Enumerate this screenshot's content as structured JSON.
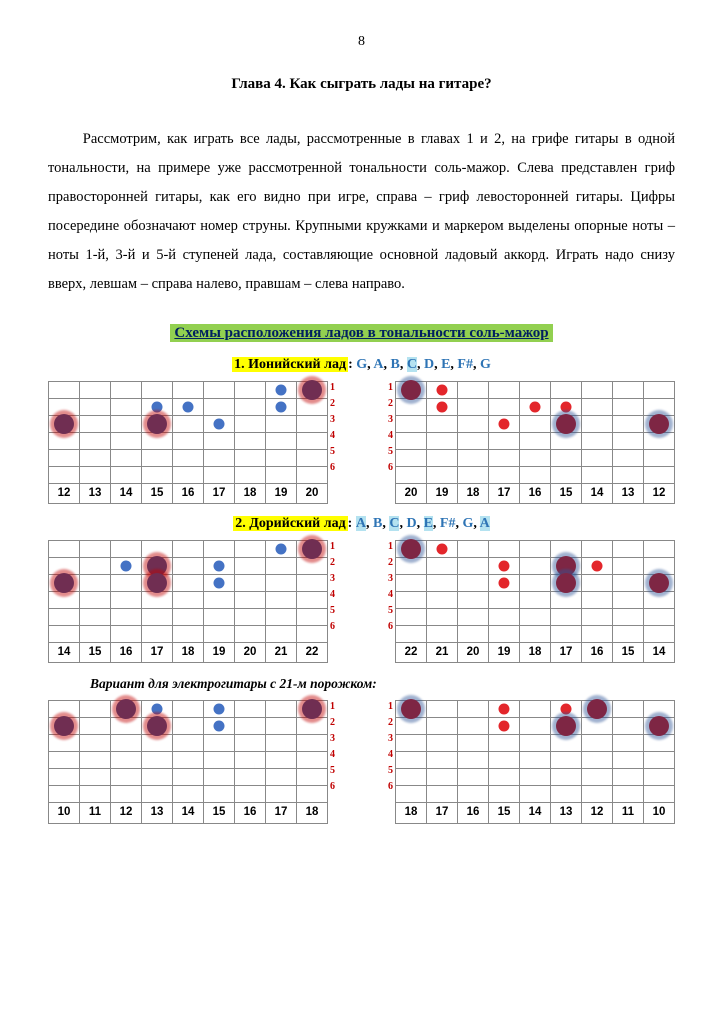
{
  "page_number": "8",
  "chapter_title": "Глава 4. Как сыграть лады на гитаре?",
  "paragraph": "Рассмотрим, как играть все лады, рассмотренные в главах 1 и 2, на грифе гитары в одной тональности, на примере уже рассмотренной тональности соль-мажор. Слева представлен гриф правосторонней гитары, как его видно при игре, справа – гриф левосторонней гитары. Цифры посередине обозначают номер струны. Крупными кружками и маркером выделены опорные ноты – ноты 1-й, 3-й и 5-й ступеней лада, составляющие основной ладовый аккорд. Играть надо снизу вверх, левшам – справа налево, правшам – слева направо.",
  "section_title": "Схемы расположения ладов в тональности соль-мажор",
  "string_labels": [
    "1",
    "2",
    "3",
    "4",
    "5",
    "6"
  ],
  "mode1": {
    "title_prefix": "1. Ионийский лад",
    "notes": [
      "G",
      "A",
      "B",
      "C",
      "D",
      "E",
      "F#",
      "G"
    ],
    "hl_idx": [
      3
    ],
    "left": {
      "frets": [
        "12",
        "13",
        "14",
        "15",
        "16",
        "17",
        "18",
        "19",
        "20"
      ],
      "dots": [
        {
          "r": 2,
          "c": 0,
          "t": "lg"
        },
        {
          "r": 2,
          "c": 3,
          "t": "lg"
        },
        {
          "r": 1,
          "c": 3,
          "t": "sm"
        },
        {
          "r": 1,
          "c": 4,
          "t": "sm"
        },
        {
          "r": 2,
          "c": 5,
          "t": "sm"
        },
        {
          "r": 1,
          "c": 7,
          "t": "sm"
        },
        {
          "r": 0,
          "c": 7,
          "t": "sm"
        },
        {
          "r": 0,
          "c": 8,
          "t": "lg"
        }
      ]
    },
    "right": {
      "frets": [
        "20",
        "19",
        "18",
        "17",
        "16",
        "15",
        "14",
        "13",
        "12"
      ],
      "dots": [
        {
          "r": 0,
          "c": 0,
          "t": "lg"
        },
        {
          "r": 0,
          "c": 1,
          "t": "sm"
        },
        {
          "r": 1,
          "c": 1,
          "t": "sm"
        },
        {
          "r": 2,
          "c": 3,
          "t": "sm"
        },
        {
          "r": 1,
          "c": 4,
          "t": "sm"
        },
        {
          "r": 2,
          "c": 5,
          "t": "lg"
        },
        {
          "r": 1,
          "c": 5,
          "t": "sm"
        },
        {
          "r": 2,
          "c": 8,
          "t": "lg"
        }
      ]
    }
  },
  "mode2": {
    "title_prefix": "2. Дорийский лад",
    "notes": [
      "A",
      "B",
      "C",
      "D",
      "E",
      "F#",
      "G",
      "A"
    ],
    "hl_idx": [
      0,
      2,
      4,
      7
    ],
    "left": {
      "frets": [
        "14",
        "15",
        "16",
        "17",
        "18",
        "19",
        "20",
        "21",
        "22"
      ],
      "dots": [
        {
          "r": 2,
          "c": 0,
          "t": "lg"
        },
        {
          "r": 1,
          "c": 2,
          "t": "sm"
        },
        {
          "r": 1,
          "c": 3,
          "t": "lg"
        },
        {
          "r": 2,
          "c": 3,
          "t": "lg"
        },
        {
          "r": 1,
          "c": 5,
          "t": "sm"
        },
        {
          "r": 2,
          "c": 5,
          "t": "sm"
        },
        {
          "r": 0,
          "c": 7,
          "t": "sm"
        },
        {
          "r": 0,
          "c": 8,
          "t": "lg"
        }
      ]
    },
    "right": {
      "frets": [
        "22",
        "21",
        "20",
        "19",
        "18",
        "17",
        "16",
        "15",
        "14"
      ],
      "dots": [
        {
          "r": 0,
          "c": 0,
          "t": "lg"
        },
        {
          "r": 0,
          "c": 1,
          "t": "sm"
        },
        {
          "r": 1,
          "c": 3,
          "t": "sm"
        },
        {
          "r": 2,
          "c": 3,
          "t": "sm"
        },
        {
          "r": 1,
          "c": 5,
          "t": "lg"
        },
        {
          "r": 2,
          "c": 5,
          "t": "lg"
        },
        {
          "r": 1,
          "c": 6,
          "t": "sm"
        },
        {
          "r": 2,
          "c": 8,
          "t": "lg"
        }
      ]
    }
  },
  "variant_label": "Вариант для электрогитары с 21-м порожком:",
  "mode3": {
    "left": {
      "frets": [
        "10",
        "11",
        "12",
        "13",
        "14",
        "15",
        "16",
        "17",
        "18"
      ],
      "dots": [
        {
          "r": 1,
          "c": 0,
          "t": "lg"
        },
        {
          "r": 0,
          "c": 2,
          "t": "lg"
        },
        {
          "r": 0,
          "c": 3,
          "t": "sm"
        },
        {
          "r": 1,
          "c": 3,
          "t": "lg"
        },
        {
          "r": 0,
          "c": 5,
          "t": "sm"
        },
        {
          "r": 1,
          "c": 5,
          "t": "sm"
        },
        {
          "r": 0,
          "c": 8,
          "t": "lg"
        }
      ]
    },
    "right": {
      "frets": [
        "18",
        "17",
        "16",
        "15",
        "14",
        "13",
        "12",
        "11",
        "10"
      ],
      "dots": [
        {
          "r": 0,
          "c": 0,
          "t": "lg"
        },
        {
          "r": 0,
          "c": 3,
          "t": "sm"
        },
        {
          "r": 1,
          "c": 3,
          "t": "sm"
        },
        {
          "r": 0,
          "c": 5,
          "t": "sm"
        },
        {
          "r": 1,
          "c": 5,
          "t": "lg"
        },
        {
          "r": 0,
          "c": 6,
          "t": "lg"
        },
        {
          "r": 1,
          "c": 8,
          "t": "lg"
        }
      ]
    }
  },
  "colors": {
    "blue_large": "#2f5597",
    "blue_small": "#4472c4",
    "red_large": "#c00000",
    "red_small": "#e3262b",
    "section_bg": "#92d050",
    "section_fg": "#002060",
    "mode_hl": "#ffff00",
    "note_hl": "#b4e2f0",
    "grid": "#888888"
  }
}
